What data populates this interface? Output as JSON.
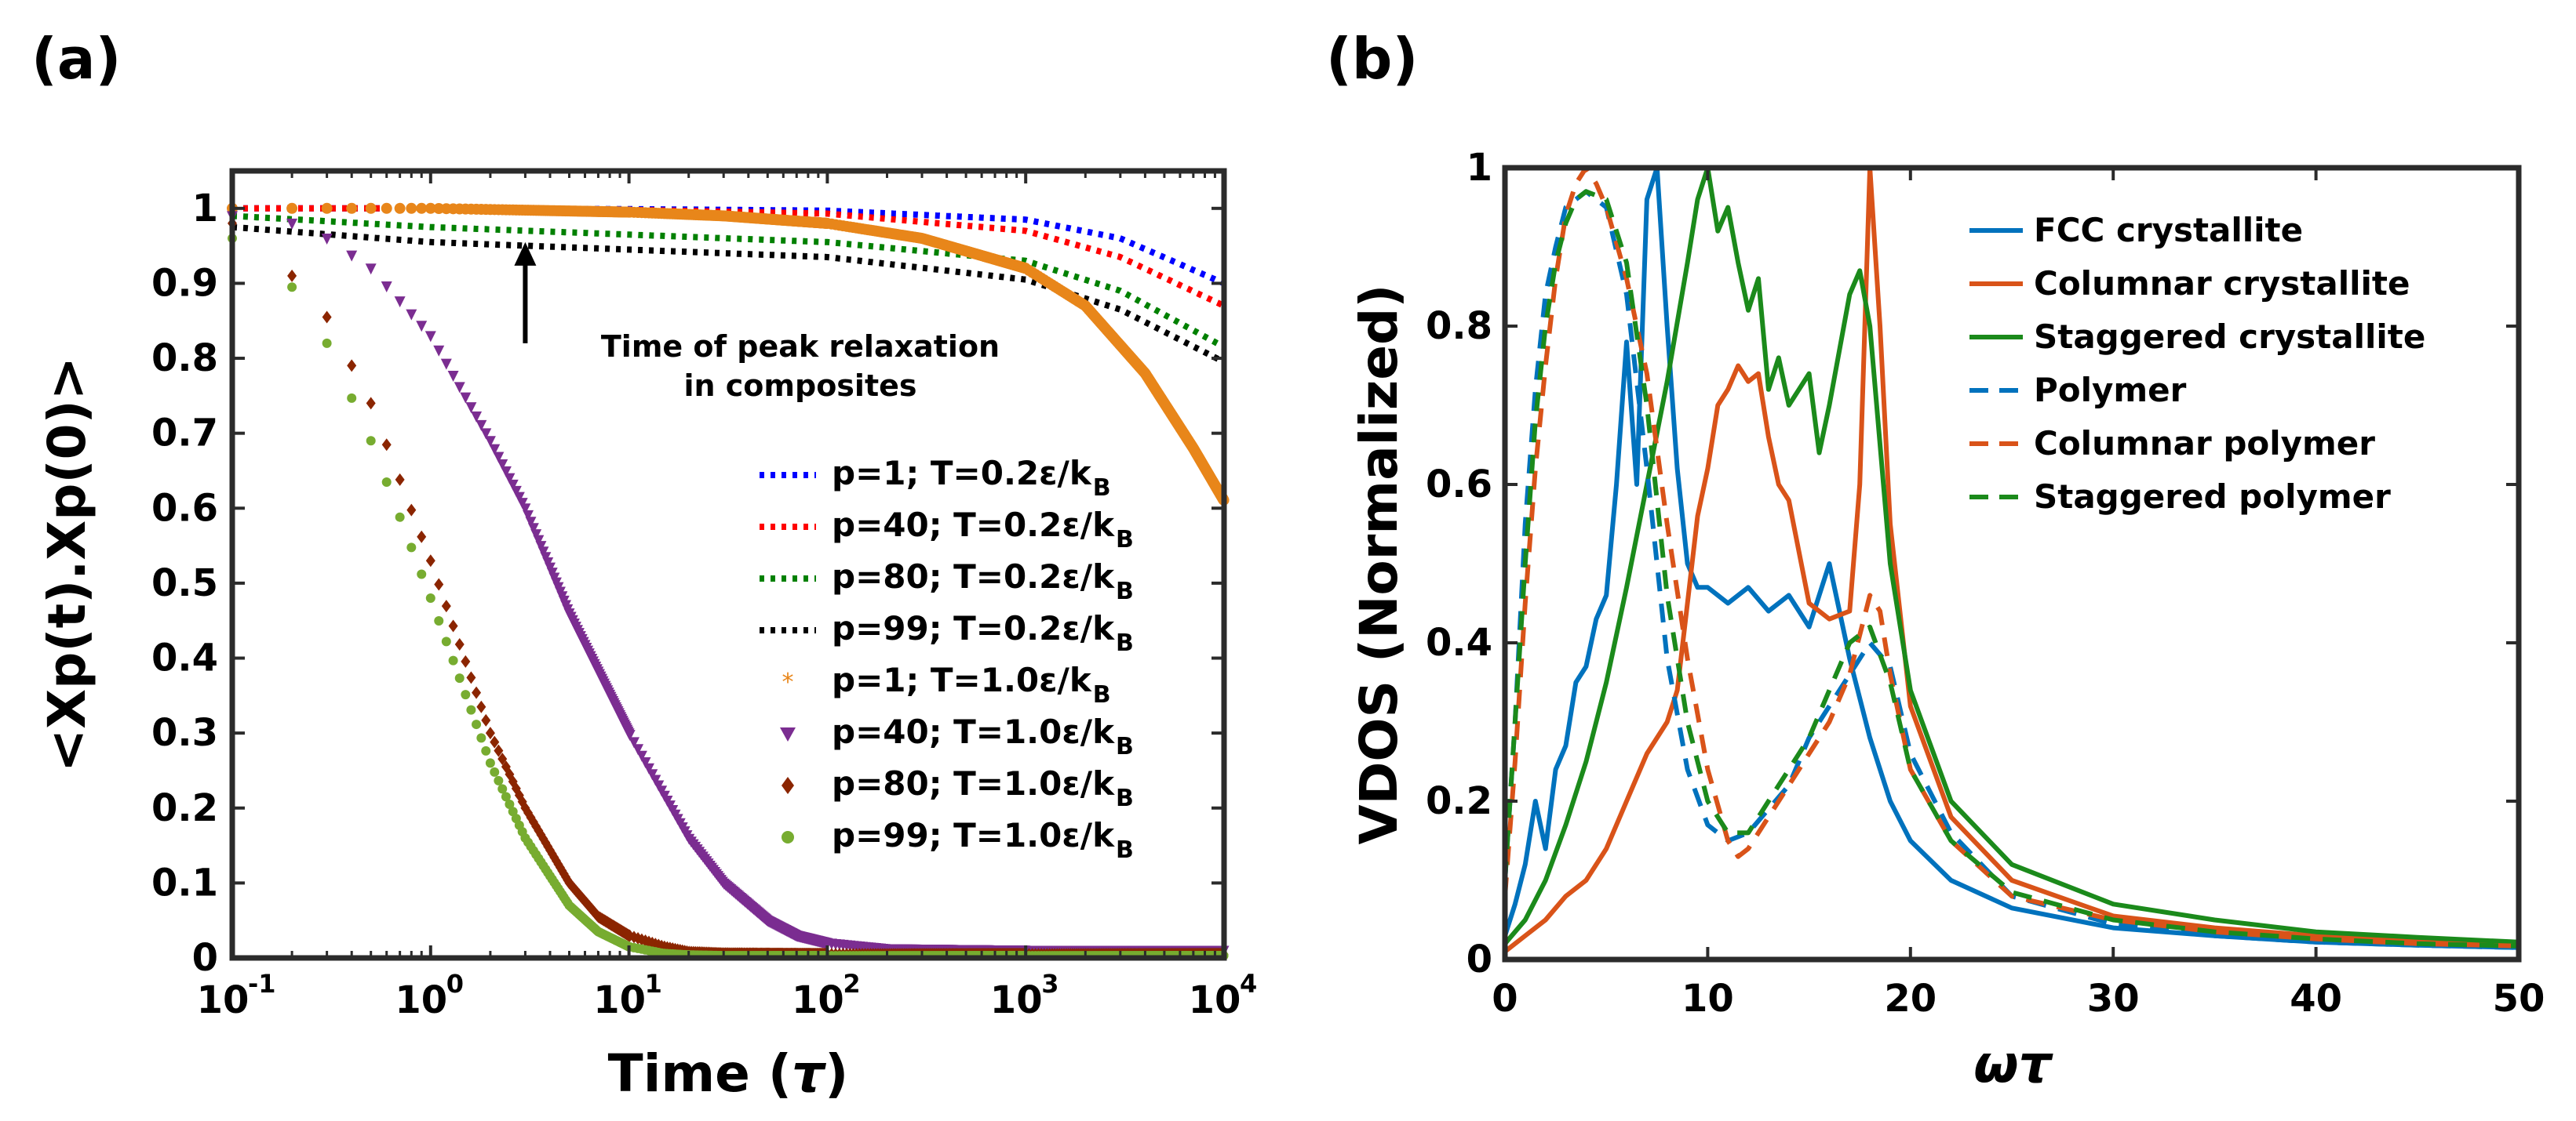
{
  "chart_data": [
    {
      "panel": "(a)",
      "type": "scatter",
      "xscale": "log",
      "xlim": [
        0.1,
        10000
      ],
      "ylim": [
        0,
        1.05
      ],
      "xlabel": "Time",
      "xlabel_symbol": "τ",
      "ylabel": "<Xp(t).Xp(0)>",
      "xticks": [
        {
          "value": 0.1,
          "base": "10",
          "exp": "-1"
        },
        {
          "value": 1,
          "base": "10",
          "exp": "0"
        },
        {
          "value": 10,
          "base": "10",
          "exp": "1"
        },
        {
          "value": 100,
          "base": "10",
          "exp": "2"
        },
        {
          "value": 1000,
          "base": "10",
          "exp": "3"
        },
        {
          "value": 10000,
          "base": "10",
          "exp": "4"
        }
      ],
      "yticks": [
        "0",
        "0.1",
        "0.2",
        "0.3",
        "0.4",
        "0.5",
        "0.6",
        "0.7",
        "0.8",
        "0.9",
        "1"
      ],
      "yticks_values": [
        0,
        0.1,
        0.2,
        0.3,
        0.4,
        0.5,
        0.6,
        0.7,
        0.8,
        0.9,
        1
      ],
      "annotation": {
        "line1": "Time of peak relaxation",
        "line2": "in composites",
        "x": 3,
        "y_from": 0.82,
        "y_to": 0.955
      },
      "legend_position": "right",
      "series": [
        {
          "name": "p=1; T=0.2ε/kB",
          "label": "p=1; T=0.2ε/k",
          "sub": "B",
          "color": "#0000ff",
          "style": "dotted",
          "x": [
            0.1,
            1,
            10,
            100,
            1000,
            3000,
            10000
          ],
          "y": [
            1.0,
            1.0,
            0.999,
            0.997,
            0.985,
            0.96,
            0.9
          ]
        },
        {
          "name": "p=40; T=0.2ε/kB",
          "label": "p=40; T=0.2ε/k",
          "sub": "B",
          "color": "#ff0000",
          "style": "dotted",
          "x": [
            0.1,
            1,
            10,
            100,
            1000,
            3000,
            10000
          ],
          "y": [
            1.0,
            1.0,
            0.998,
            0.993,
            0.97,
            0.935,
            0.87
          ]
        },
        {
          "name": "p=80; T=0.2ε/kB",
          "label": "p=80; T=0.2ε/k",
          "sub": "B",
          "color": "#008000",
          "style": "dotted",
          "x": [
            0.1,
            1,
            10,
            100,
            1000,
            3000,
            10000
          ],
          "y": [
            0.99,
            0.975,
            0.965,
            0.955,
            0.93,
            0.89,
            0.815
          ]
        },
        {
          "name": "p=99; T=0.2ε/kB",
          "label": "p=99; T=0.2ε/k",
          "sub": "B",
          "color": "#000000",
          "style": "dotted",
          "x": [
            0.1,
            1,
            10,
            100,
            1000,
            3000,
            10000
          ],
          "y": [
            0.975,
            0.955,
            0.945,
            0.935,
            0.905,
            0.865,
            0.795
          ]
        },
        {
          "name": "p=1; T=1.0ε/kB",
          "label": "p=1; T=1.0ε/k",
          "sub": "B",
          "color": "#e8861a",
          "style": "star",
          "x": [
            0.1,
            1,
            10,
            30,
            100,
            300,
            1000,
            2000,
            4000,
            7000,
            10000
          ],
          "y": [
            1.0,
            1.0,
            0.995,
            0.99,
            0.98,
            0.96,
            0.92,
            0.87,
            0.78,
            0.68,
            0.61
          ]
        },
        {
          "name": "p=40; T=1.0ε/kB",
          "label": "p=40; T=1.0ε/k",
          "sub": "B",
          "color": "#7b2d91",
          "style": "triangle",
          "x": [
            0.1,
            0.2,
            0.3,
            0.5,
            1,
            2,
            3,
            5,
            10,
            20,
            30,
            50,
            70,
            100,
            200,
            1000,
            10000
          ],
          "y": [
            0.99,
            0.98,
            0.96,
            0.92,
            0.83,
            0.69,
            0.6,
            0.46,
            0.3,
            0.16,
            0.1,
            0.05,
            0.03,
            0.02,
            0.012,
            0.01,
            0.01
          ]
        },
        {
          "name": "p=80; T=1.0ε/kB",
          "label": "p=80; T=1.0ε/k",
          "sub": "B",
          "color": "#8b2500",
          "style": "diamond",
          "x": [
            0.1,
            0.2,
            0.3,
            0.5,
            1,
            2,
            3,
            5,
            7,
            10,
            15,
            20,
            30,
            100,
            1000,
            10000
          ],
          "y": [
            0.98,
            0.91,
            0.855,
            0.74,
            0.53,
            0.3,
            0.2,
            0.1,
            0.055,
            0.03,
            0.015,
            0.008,
            0.006,
            0.005,
            0.005,
            0.005
          ]
        },
        {
          "name": "p=99; T=1.0ε/kB",
          "label": "p=99; T=1.0ε/k",
          "sub": "B",
          "color": "#77ac30",
          "style": "dot",
          "x": [
            0.1,
            0.2,
            0.3,
            0.5,
            1,
            2,
            3,
            5,
            7,
            10,
            15,
            20,
            30,
            100,
            1000,
            10000
          ],
          "y": [
            0.96,
            0.895,
            0.82,
            0.69,
            0.48,
            0.26,
            0.16,
            0.07,
            0.035,
            0.015,
            0.006,
            0.004,
            0.003,
            0.003,
            0.003,
            0.003
          ]
        }
      ]
    },
    {
      "panel": "(b)",
      "type": "line",
      "xlim": [
        0,
        50
      ],
      "ylim": [
        0,
        1
      ],
      "xlabel": "ωτ",
      "ylabel": "VDOS (Normalized)",
      "xticks": [
        "0",
        "10",
        "20",
        "30",
        "40",
        "50"
      ],
      "xticks_values": [
        0,
        10,
        20,
        30,
        40,
        50
      ],
      "yticks": [
        "0",
        "0.2",
        "0.4",
        "0.6",
        "0.8",
        "1"
      ],
      "yticks_values": [
        0,
        0.2,
        0.4,
        0.6,
        0.8,
        1
      ],
      "legend_position": "top-right",
      "series": [
        {
          "name": "FCC crystallite",
          "color": "#0072bd",
          "style": "solid",
          "x": [
            0,
            0.5,
            1,
            1.5,
            2,
            2.5,
            3,
            3.5,
            4,
            4.5,
            5,
            5.5,
            6,
            6.5,
            7,
            7.5,
            8,
            8.5,
            9,
            9.5,
            10,
            10.5,
            11,
            12,
            13,
            14,
            15,
            16,
            17,
            18,
            19,
            20,
            22,
            25,
            30,
            35,
            40,
            45,
            50
          ],
          "y": [
            0.03,
            0.07,
            0.12,
            0.2,
            0.14,
            0.24,
            0.27,
            0.35,
            0.37,
            0.43,
            0.46,
            0.6,
            0.78,
            0.6,
            0.96,
            1.0,
            0.8,
            0.62,
            0.5,
            0.47,
            0.47,
            0.46,
            0.45,
            0.47,
            0.44,
            0.46,
            0.42,
            0.5,
            0.38,
            0.28,
            0.2,
            0.15,
            0.1,
            0.065,
            0.04,
            0.03,
            0.022,
            0.018,
            0.015
          ]
        },
        {
          "name": "Columnar crystallite",
          "color": "#d95319",
          "style": "solid",
          "x": [
            0,
            1,
            2,
            3,
            4,
            5,
            6,
            7,
            8,
            8.5,
            9,
            9.5,
            10,
            10.5,
            11,
            11.5,
            12,
            12.5,
            13,
            13.5,
            14,
            15,
            16,
            17,
            17.5,
            18,
            18.5,
            19,
            20,
            22,
            25,
            30,
            35,
            40,
            45,
            50
          ],
          "y": [
            0.01,
            0.03,
            0.05,
            0.08,
            0.1,
            0.14,
            0.2,
            0.26,
            0.3,
            0.34,
            0.45,
            0.56,
            0.62,
            0.7,
            0.72,
            0.75,
            0.73,
            0.74,
            0.66,
            0.6,
            0.58,
            0.45,
            0.43,
            0.44,
            0.6,
            1.0,
            0.8,
            0.55,
            0.32,
            0.18,
            0.1,
            0.055,
            0.04,
            0.03,
            0.024,
            0.02
          ]
        },
        {
          "name": "Staggered crystallite",
          "color": "#1b8a1b",
          "style": "solid",
          "x": [
            0,
            1,
            2,
            3,
            4,
            5,
            6,
            7,
            8,
            9,
            9.5,
            10,
            10.5,
            11,
            11.5,
            12,
            12.5,
            13,
            13.5,
            14,
            15,
            15.5,
            16,
            17,
            17.5,
            18,
            19,
            20,
            22,
            25,
            30,
            35,
            40,
            45,
            50
          ],
          "y": [
            0.02,
            0.05,
            0.1,
            0.17,
            0.25,
            0.35,
            0.47,
            0.6,
            0.73,
            0.88,
            0.96,
            1.0,
            0.92,
            0.95,
            0.88,
            0.82,
            0.86,
            0.72,
            0.76,
            0.7,
            0.74,
            0.64,
            0.7,
            0.84,
            0.87,
            0.8,
            0.5,
            0.34,
            0.2,
            0.12,
            0.07,
            0.05,
            0.035,
            0.028,
            0.022
          ]
        },
        {
          "name": "Polymer",
          "color": "#0072bd",
          "style": "dashed",
          "x": [
            0,
            0.5,
            1,
            1.5,
            2,
            2.5,
            3,
            3.5,
            4,
            5,
            6,
            7,
            8,
            9,
            10,
            11,
            12,
            13,
            14,
            15,
            16,
            17,
            18,
            19,
            20,
            22,
            25,
            30,
            35,
            40,
            45,
            50
          ],
          "y": [
            0.1,
            0.3,
            0.55,
            0.72,
            0.84,
            0.9,
            0.95,
            0.96,
            0.97,
            0.95,
            0.84,
            0.62,
            0.38,
            0.24,
            0.17,
            0.15,
            0.16,
            0.19,
            0.22,
            0.28,
            0.32,
            0.36,
            0.4,
            0.37,
            0.26,
            0.16,
            0.08,
            0.045,
            0.03,
            0.022,
            0.018,
            0.015
          ]
        },
        {
          "name": "Columnar polymer",
          "color": "#d95319",
          "style": "dashed",
          "x": [
            0,
            0.5,
            1,
            1.5,
            2,
            2.5,
            3,
            3.5,
            4,
            4.5,
            5,
            6,
            7,
            8,
            9,
            10,
            11,
            11.5,
            12,
            13,
            14,
            15,
            16,
            17,
            18,
            18.5,
            19,
            20,
            22,
            25,
            30,
            35,
            40,
            45,
            50
          ],
          "y": [
            0.08,
            0.25,
            0.45,
            0.62,
            0.75,
            0.86,
            0.94,
            0.98,
            1.0,
            0.98,
            0.95,
            0.86,
            0.74,
            0.55,
            0.38,
            0.24,
            0.15,
            0.13,
            0.14,
            0.18,
            0.22,
            0.26,
            0.3,
            0.36,
            0.46,
            0.44,
            0.36,
            0.24,
            0.15,
            0.08,
            0.05,
            0.035,
            0.026,
            0.02,
            0.017
          ]
        },
        {
          "name": "Staggered polymer",
          "color": "#1b8a1b",
          "style": "dashed",
          "x": [
            0,
            0.5,
            1,
            1.5,
            2,
            2.5,
            3,
            3.5,
            4,
            5,
            6,
            7,
            8,
            9,
            10,
            11,
            12,
            13,
            14,
            15,
            16,
            17,
            18,
            19,
            20,
            22,
            25,
            30,
            35,
            40,
            45,
            50
          ],
          "y": [
            0.1,
            0.3,
            0.5,
            0.68,
            0.8,
            0.88,
            0.93,
            0.96,
            0.97,
            0.96,
            0.88,
            0.7,
            0.46,
            0.3,
            0.2,
            0.16,
            0.16,
            0.2,
            0.24,
            0.28,
            0.34,
            0.4,
            0.42,
            0.35,
            0.24,
            0.15,
            0.085,
            0.05,
            0.035,
            0.026,
            0.02,
            0.017
          ]
        }
      ]
    }
  ]
}
